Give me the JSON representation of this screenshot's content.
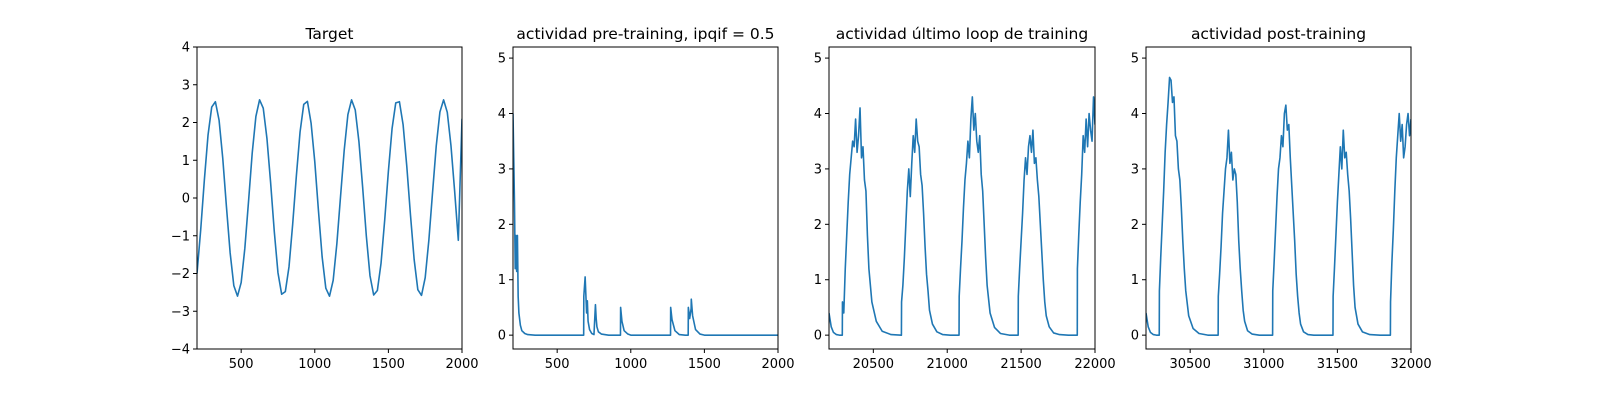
{
  "chart_data": [
    {
      "type": "line",
      "title": "Target",
      "xlabel": "",
      "ylabel": "",
      "xlim": [
        200,
        2000
      ],
      "ylim": [
        -4,
        4
      ],
      "xticks": [
        500,
        1000,
        1500,
        2000
      ],
      "yticks": [
        -4,
        -3,
        -2,
        -1,
        0,
        1,
        2,
        3,
        4
      ],
      "grid": false,
      "color": "#1f77b4",
      "series": [
        {
          "x": [
            200,
            225,
            250,
            275,
            300,
            325,
            350,
            375,
            400,
            425,
            450,
            475,
            500,
            525,
            550,
            575,
            600,
            625,
            650,
            675,
            700,
            725,
            750,
            775,
            800,
            825,
            850,
            875,
            900,
            925,
            950,
            975,
            1000,
            1025,
            1050,
            1075,
            1100,
            1125,
            1150,
            1175,
            1200,
            1225,
            1250,
            1275,
            1300,
            1325,
            1350,
            1375,
            1400,
            1425,
            1450,
            1475,
            1500,
            1525,
            1550,
            1575,
            1600,
            1625,
            1650,
            1675,
            1700,
            1725,
            1750,
            1775,
            1800,
            1825,
            1850,
            1875,
            1900,
            1925,
            1950,
            1975,
            2000
          ],
          "y": [
            -2.0,
            -0.85,
            0.48,
            1.67,
            2.41,
            2.55,
            2.06,
            1.05,
            -0.23,
            -1.45,
            -2.32,
            -2.6,
            -2.24,
            -1.33,
            -0.09,
            1.19,
            2.16,
            2.6,
            2.38,
            1.58,
            0.41,
            -0.89,
            -1.98,
            -2.55,
            -2.48,
            -1.82,
            -0.69,
            0.59,
            1.75,
            2.48,
            2.56,
            1.98,
            0.96,
            -0.34,
            -1.56,
            -2.39,
            -2.6,
            -2.18,
            -1.21,
            0.04,
            1.27,
            2.21,
            2.6,
            2.33,
            1.49,
            0.29,
            -1.0,
            -2.06,
            -2.57,
            -2.45,
            -1.73,
            -0.58,
            0.71,
            1.84,
            2.52,
            2.55,
            1.94,
            0.84,
            -0.45,
            -1.63,
            -2.43,
            -2.58,
            -2.11,
            -1.11,
            0.15,
            1.38,
            2.28,
            2.6,
            2.27,
            1.39,
            0.18,
            -1.12,
            2.1
          ]
        }
      ]
    },
    {
      "type": "line",
      "title": "actividad pre-training, ipqif = 0.5",
      "xlabel": "",
      "ylabel": "",
      "xlim": [
        200,
        2000
      ],
      "ylim": [
        -0.25,
        5.2
      ],
      "xticks": [
        500,
        1000,
        1500,
        2000
      ],
      "yticks": [
        0,
        1,
        2,
        3,
        4,
        5
      ],
      "grid": false,
      "color": "#1f77b4",
      "series": [
        {
          "x": [
            200,
            205,
            210,
            215,
            220,
            225,
            230,
            235,
            240,
            250,
            260,
            280,
            300,
            350,
            400,
            500,
            600,
            680,
            681,
            690,
            700,
            705,
            710,
            720,
            735,
            750,
            760,
            765,
            770,
            780,
            800,
            850,
            900,
            930,
            931,
            940,
            955,
            980,
            1000,
            1100,
            1200,
            1270,
            1271,
            1280,
            1300,
            1330,
            1370,
            1390,
            1391,
            1400,
            1410,
            1411,
            1420,
            1440,
            1470,
            1500,
            1600,
            1700,
            1800,
            1900,
            2000
          ],
          "y": [
            4.0,
            3.2,
            2.4,
            1.2,
            1.8,
            1.15,
            1.8,
            0.7,
            0.4,
            0.18,
            0.08,
            0.03,
            0.01,
            0.0,
            0.0,
            0.0,
            0.0,
            0.0,
            0.7,
            1.05,
            0.4,
            0.62,
            0.25,
            0.1,
            0.03,
            0.01,
            0.55,
            0.3,
            0.15,
            0.06,
            0.02,
            0.0,
            0.0,
            0.0,
            0.5,
            0.25,
            0.08,
            0.02,
            0.0,
            0.0,
            0.0,
            0.0,
            0.5,
            0.28,
            0.08,
            0.01,
            0.0,
            0.0,
            0.5,
            0.3,
            0.48,
            0.65,
            0.35,
            0.1,
            0.02,
            0.0,
            0.0,
            0.0,
            0.0,
            0.0,
            0.0
          ]
        }
      ]
    },
    {
      "type": "line",
      "title": "actividad último loop de training",
      "xlabel": "",
      "ylabel": "",
      "xlim": [
        20200,
        22000
      ],
      "ylim": [
        -0.25,
        5.2
      ],
      "xticks": [
        20500,
        21000,
        21500,
        22000
      ],
      "yticks": [
        0,
        1,
        2,
        3,
        4,
        5
      ],
      "grid": false,
      "color": "#1f77b4",
      "series": [
        {
          "x": [
            20200,
            20215,
            20230,
            20250,
            20270,
            20290,
            20291,
            20300,
            20310,
            20320,
            20330,
            20340,
            20350,
            20360,
            20370,
            20380,
            20390,
            20400,
            20410,
            20420,
            20430,
            20440,
            20450,
            20460,
            20470,
            20490,
            20520,
            20560,
            20620,
            20690,
            20691,
            20700,
            20710,
            20720,
            20730,
            20740,
            20750,
            20760,
            20770,
            20780,
            20790,
            20800,
            20810,
            20820,
            20830,
            20840,
            20850,
            20860,
            20870,
            20880,
            20900,
            20930,
            20970,
            21020,
            21080,
            21081,
            21090,
            21100,
            21110,
            21120,
            21130,
            21140,
            21150,
            21160,
            21170,
            21180,
            21190,
            21200,
            21210,
            21220,
            21230,
            21240,
            21250,
            21260,
            21270,
            21290,
            21320,
            21360,
            21420,
            21480,
            21481,
            21490,
            21500,
            21510,
            21520,
            21530,
            21540,
            21550,
            21560,
            21570,
            21580,
            21590,
            21600,
            21610,
            21620,
            21630,
            21640,
            21650,
            21660,
            21670,
            21690,
            21720,
            21760,
            21820,
            21880,
            21881,
            21890,
            21900,
            21910,
            21920,
            21930,
            21940,
            21950,
            21960,
            21970,
            21980,
            21990,
            22000
          ],
          "y": [
            0.4,
            0.15,
            0.05,
            0.01,
            0.0,
            0.0,
            0.6,
            0.4,
            1.2,
            1.8,
            2.4,
            2.9,
            3.2,
            3.5,
            3.4,
            3.9,
            3.3,
            3.6,
            4.1,
            3.2,
            3.4,
            2.8,
            2.6,
            1.8,
            1.2,
            0.6,
            0.25,
            0.07,
            0.01,
            0.0,
            0.6,
            0.9,
            1.4,
            2.0,
            2.6,
            3.0,
            2.5,
            3.1,
            3.6,
            3.3,
            3.9,
            3.5,
            3.4,
            2.9,
            2.7,
            2.2,
            1.6,
            1.1,
            0.8,
            0.45,
            0.2,
            0.06,
            0.01,
            0.0,
            0.0,
            0.7,
            1.2,
            1.7,
            2.3,
            2.8,
            3.1,
            3.5,
            3.2,
            3.9,
            4.3,
            3.7,
            4.0,
            3.5,
            3.3,
            3.6,
            2.9,
            2.6,
            2.0,
            1.4,
            0.9,
            0.4,
            0.14,
            0.03,
            0.0,
            0.0,
            0.7,
            1.2,
            1.7,
            2.2,
            2.8,
            3.2,
            2.9,
            3.4,
            3.6,
            3.3,
            3.7,
            3.1,
            3.2,
            2.8,
            2.5,
            2.0,
            1.5,
            1.0,
            0.6,
            0.35,
            0.15,
            0.04,
            0.01,
            0.0,
            0.0,
            1.2,
            1.8,
            2.4,
            2.9,
            3.6,
            3.3,
            3.9,
            3.4,
            4.0,
            3.7,
            3.5,
            4.3,
            3.8
          ]
        }
      ]
    },
    {
      "type": "line",
      "title": "actividad post-training",
      "xlabel": "",
      "ylabel": "",
      "xlim": [
        30200,
        32000
      ],
      "ylim": [
        -0.25,
        5.2
      ],
      "xticks": [
        30500,
        31000,
        31500,
        32000
      ],
      "yticks": [
        0,
        1,
        2,
        3,
        4,
        5
      ],
      "grid": false,
      "color": "#1f77b4",
      "series": [
        {
          "x": [
            30200,
            30215,
            30230,
            30250,
            30270,
            30290,
            30291,
            30300,
            30310,
            30320,
            30330,
            30340,
            30350,
            30360,
            30370,
            30380,
            30390,
            30400,
            30410,
            30420,
            30430,
            30440,
            30450,
            30460,
            30470,
            30490,
            30520,
            30560,
            30620,
            30690,
            30691,
            30700,
            30710,
            30720,
            30730,
            30740,
            30750,
            30760,
            30770,
            30780,
            30790,
            30800,
            30810,
            30820,
            30830,
            30840,
            30850,
            30860,
            30870,
            30890,
            30920,
            30970,
            31020,
            31060,
            31061,
            31070,
            31080,
            31090,
            31100,
            31110,
            31120,
            31130,
            31140,
            31150,
            31160,
            31170,
            31180,
            31190,
            31200,
            31210,
            31220,
            31230,
            31240,
            31250,
            31270,
            31300,
            31340,
            31400,
            31470,
            31471,
            31480,
            31490,
            31500,
            31510,
            31520,
            31530,
            31540,
            31550,
            31560,
            31570,
            31580,
            31590,
            31600,
            31610,
            31620,
            31640,
            31670,
            31720,
            31790,
            31860,
            31861,
            31870,
            31880,
            31890,
            31900,
            31910,
            31920,
            31930,
            31940,
            31950,
            31960,
            31970,
            31980,
            31990,
            32000
          ],
          "y": [
            0.4,
            0.15,
            0.05,
            0.01,
            0.0,
            0.0,
            0.8,
            1.4,
            2.0,
            2.6,
            3.3,
            3.8,
            4.2,
            4.65,
            4.6,
            4.2,
            4.3,
            3.6,
            3.5,
            3.0,
            2.8,
            2.3,
            1.7,
            1.2,
            0.8,
            0.35,
            0.12,
            0.03,
            0.0,
            0.0,
            0.7,
            1.1,
            1.6,
            2.2,
            2.6,
            3.0,
            3.2,
            3.7,
            3.1,
            3.3,
            2.8,
            3.0,
            2.9,
            2.4,
            1.7,
            1.2,
            0.8,
            0.45,
            0.25,
            0.08,
            0.02,
            0.0,
            0.0,
            0.0,
            0.8,
            1.3,
            1.9,
            2.5,
            3.0,
            3.2,
            3.6,
            3.4,
            4.0,
            4.15,
            3.7,
            3.8,
            3.2,
            2.7,
            2.2,
            1.7,
            1.1,
            0.7,
            0.4,
            0.2,
            0.06,
            0.01,
            0.0,
            0.0,
            0.0,
            0.7,
            1.2,
            1.8,
            2.4,
            2.9,
            3.4,
            3.0,
            3.7,
            3.2,
            3.3,
            2.9,
            2.6,
            2.1,
            1.5,
            0.9,
            0.5,
            0.2,
            0.06,
            0.01,
            0.0,
            0.0,
            0.6,
            1.3,
            1.9,
            2.6,
            3.2,
            3.6,
            4.0,
            3.5,
            3.8,
            3.2,
            3.4,
            3.8,
            4.0,
            3.6,
            3.9
          ]
        }
      ]
    }
  ]
}
